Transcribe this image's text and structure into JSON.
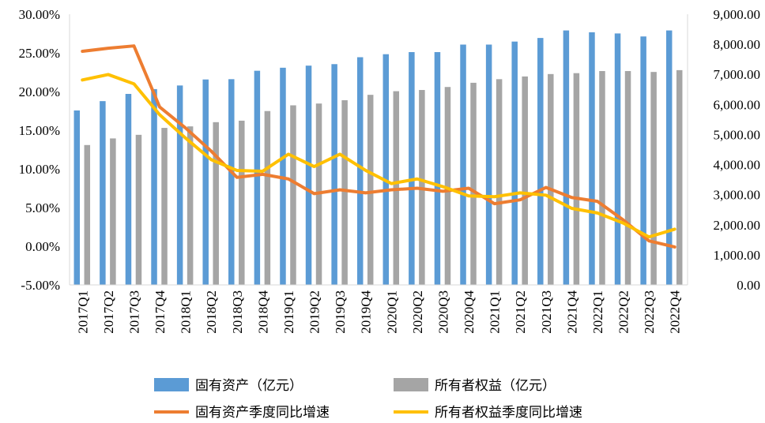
{
  "chart_data": {
    "type": "bar",
    "title": "",
    "categories": [
      "2017Q1",
      "2017Q2",
      "2017Q3",
      "2017Q4",
      "2018Q1",
      "2018Q2",
      "2018Q3",
      "2018Q4",
      "2019Q1",
      "2019Q2",
      "2019Q3",
      "2019Q4",
      "2020Q1",
      "2020Q2",
      "2020Q3",
      "2020Q4",
      "2021Q1",
      "2021Q2",
      "2021Q3",
      "2021Q4",
      "2022Q1",
      "2022Q2",
      "2022Q3",
      "2022Q4"
    ],
    "left_axis": {
      "ticks": [
        "30.00%",
        "25.00%",
        "20.00%",
        "15.00%",
        "10.00%",
        "5.00%",
        "0.00%",
        "-5.00%"
      ],
      "ylim": [
        -5,
        30
      ],
      "unit": "%"
    },
    "right_axis": {
      "ticks": [
        "9,000.00",
        "8,000.00",
        "7,000.00",
        "6,000.00",
        "5,000.00",
        "4,000.00",
        "3,000.00",
        "2,000.00",
        "1,000.00",
        "0.00"
      ],
      "ylim": [
        0,
        9000
      ]
    },
    "series": [
      {
        "name": "固有资产（亿元）",
        "type": "bar",
        "axis": "right",
        "color": "#5B9BD5",
        "values": [
          5800,
          6110,
          6350,
          6510,
          6630,
          6830,
          6840,
          7120,
          7220,
          7290,
          7340,
          7570,
          7670,
          7740,
          7740,
          7990,
          7990,
          8090,
          8210,
          8460,
          8400,
          8360,
          8260,
          8460
        ]
      },
      {
        "name": "所有者权益（亿元）",
        "type": "bar",
        "axis": "right",
        "color": "#A5A5A5",
        "values": [
          4650,
          4870,
          4990,
          5220,
          5270,
          5410,
          5460,
          5780,
          5970,
          6030,
          6140,
          6320,
          6440,
          6480,
          6580,
          6720,
          6840,
          6930,
          7010,
          7040,
          7110,
          7110,
          7080,
          7140
        ]
      },
      {
        "name": "固有资产季度同比增速",
        "type": "line",
        "axis": "left",
        "color": "#ED7D31",
        "values": [
          25.2,
          25.6,
          25.9,
          18.0,
          15.3,
          12.3,
          8.9,
          9.3,
          8.7,
          6.8,
          7.3,
          6.9,
          7.3,
          7.5,
          7.1,
          7.5,
          5.5,
          6.0,
          7.6,
          6.3,
          5.8,
          3.4,
          0.7,
          -0.1
        ]
      },
      {
        "name": "所有者权益季度同比增速",
        "type": "line",
        "axis": "left",
        "color": "#FFC000",
        "values": [
          21.5,
          22.2,
          21.0,
          17.0,
          14.0,
          11.2,
          9.8,
          9.7,
          11.9,
          10.3,
          11.9,
          9.8,
          8.1,
          8.7,
          7.7,
          6.5,
          6.4,
          6.9,
          6.6,
          4.9,
          4.3,
          3.0,
          1.2,
          2.2
        ]
      }
    ],
    "legend_position": "bottom",
    "grid": false
  }
}
